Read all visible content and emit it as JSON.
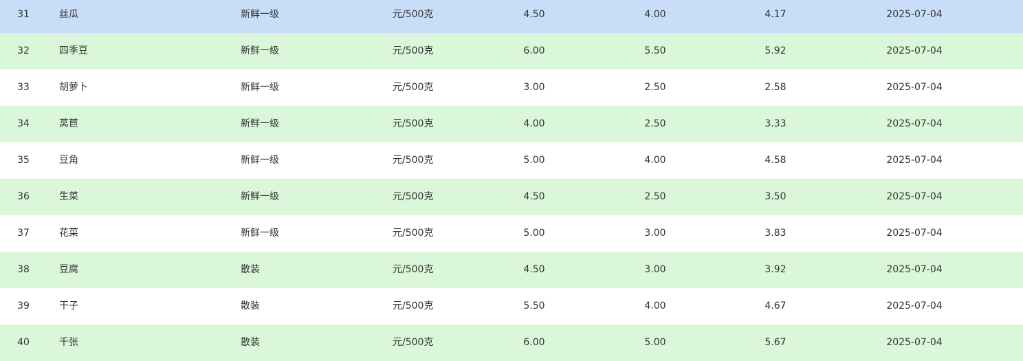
{
  "selected_row_index": 0,
  "colors": {
    "selected_row": "#c8def8",
    "striped_row": "#daf8d9",
    "row": "#ffffff"
  },
  "rows": [
    {
      "no": "31",
      "name": "丝瓜",
      "grade": "新鲜一级",
      "unit": "元/500克",
      "max": "4.50",
      "min": "4.00",
      "avg": "4.17",
      "date": "2025-07-04"
    },
    {
      "no": "32",
      "name": "四季豆",
      "grade": "新鲜一级",
      "unit": "元/500克",
      "max": "6.00",
      "min": "5.50",
      "avg": "5.92",
      "date": "2025-07-04"
    },
    {
      "no": "33",
      "name": "胡萝卜",
      "grade": "新鲜一级",
      "unit": "元/500克",
      "max": "3.00",
      "min": "2.50",
      "avg": "2.58",
      "date": "2025-07-04"
    },
    {
      "no": "34",
      "name": "莴苣",
      "grade": "新鲜一级",
      "unit": "元/500克",
      "max": "4.00",
      "min": "2.50",
      "avg": "3.33",
      "date": "2025-07-04"
    },
    {
      "no": "35",
      "name": "豆角",
      "grade": "新鲜一级",
      "unit": "元/500克",
      "max": "5.00",
      "min": "4.00",
      "avg": "4.58",
      "date": "2025-07-04"
    },
    {
      "no": "36",
      "name": "生菜",
      "grade": "新鲜一级",
      "unit": "元/500克",
      "max": "4.50",
      "min": "2.50",
      "avg": "3.50",
      "date": "2025-07-04"
    },
    {
      "no": "37",
      "name": "花菜",
      "grade": "新鲜一级",
      "unit": "元/500克",
      "max": "5.00",
      "min": "3.00",
      "avg": "3.83",
      "date": "2025-07-04"
    },
    {
      "no": "38",
      "name": "豆腐",
      "grade": "散装",
      "unit": "元/500克",
      "max": "4.50",
      "min": "3.00",
      "avg": "3.92",
      "date": "2025-07-04"
    },
    {
      "no": "39",
      "name": "干子",
      "grade": "散装",
      "unit": "元/500克",
      "max": "5.50",
      "min": "4.00",
      "avg": "4.67",
      "date": "2025-07-04"
    },
    {
      "no": "40",
      "name": "千张",
      "grade": "散装",
      "unit": "元/500克",
      "max": "6.00",
      "min": "5.00",
      "avg": "5.67",
      "date": "2025-07-04"
    }
  ]
}
